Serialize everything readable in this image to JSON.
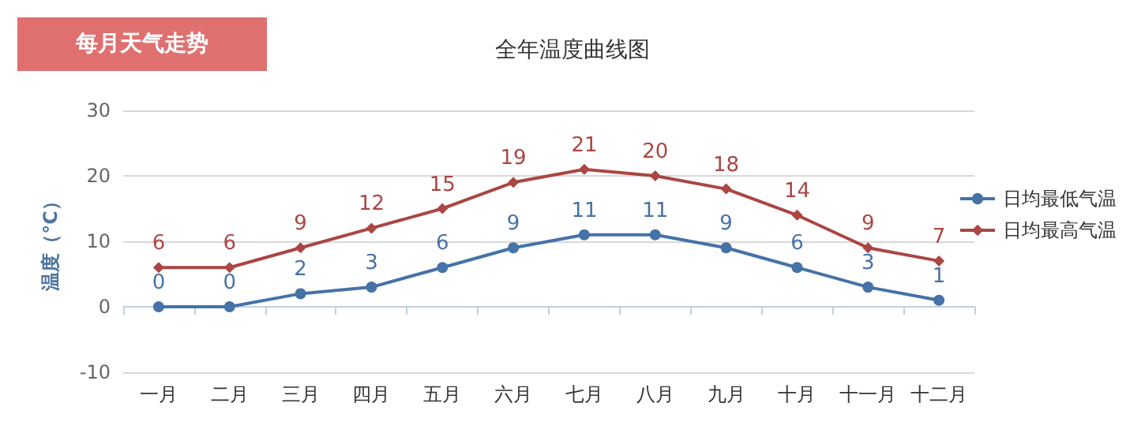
{
  "chart_data": {
    "type": "line",
    "title": "全年温度曲线图",
    "ylabel": "温度（°C）",
    "annotations": [
      "每月天气走势"
    ],
    "categories": [
      "一月",
      "二月",
      "三月",
      "四月",
      "五月",
      "六月",
      "七月",
      "八月",
      "九月",
      "十月",
      "十一月",
      "十二月"
    ],
    "series": [
      {
        "name": "日均最低气温",
        "color": "#4572a7",
        "marker": "circle",
        "values": [
          0,
          0,
          2,
          3,
          6,
          9,
          11,
          11,
          9,
          6,
          3,
          1
        ]
      },
      {
        "name": "日均最高气温",
        "color": "#aa4643",
        "marker": "diamond",
        "values": [
          6,
          6,
          9,
          12,
          15,
          19,
          21,
          20,
          18,
          14,
          9,
          7
        ]
      }
    ],
    "ylim": [
      -10,
      30
    ],
    "yticks": [
      -10,
      0,
      10,
      20,
      30
    ],
    "grid": "y",
    "legend": "right",
    "data_labels": true
  }
}
